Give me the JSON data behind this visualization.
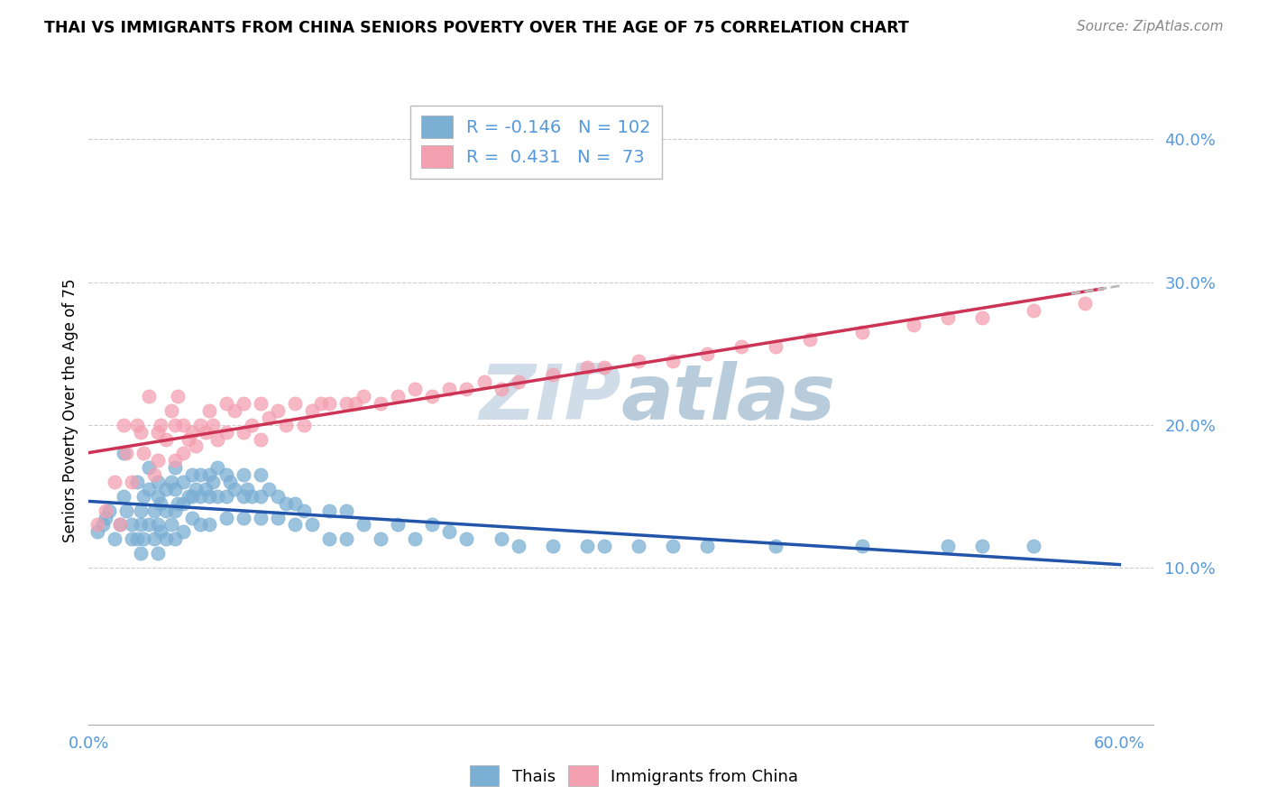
{
  "title": "THAI VS IMMIGRANTS FROM CHINA SENIORS POVERTY OVER THE AGE OF 75 CORRELATION CHART",
  "source": "Source: ZipAtlas.com",
  "ylabel": "Seniors Poverty Over the Age of 75",
  "legend_R_blue": "-0.146",
  "legend_N_blue": "102",
  "legend_R_pink": "0.431",
  "legend_N_pink": "73",
  "blue_color": "#7BAFD4",
  "pink_color": "#F4A0B0",
  "blue_line_color": "#2255AA",
  "pink_line_color": "#CC3355",
  "watermark_color": "#D0DDE8",
  "xlim": [
    0.0,
    0.62
  ],
  "ylim": [
    -0.01,
    0.43
  ],
  "ytick_vals": [
    0.1,
    0.2,
    0.3,
    0.4
  ],
  "ytick_labels": [
    "10.0%",
    "20.0%",
    "30.0%",
    "40.0%"
  ],
  "xtick_vals": [
    0.0,
    0.6
  ],
  "xtick_labels": [
    "0.0%",
    "60.0%"
  ],
  "blue_x": [
    0.005,
    0.008,
    0.01,
    0.012,
    0.015,
    0.018,
    0.02,
    0.02,
    0.022,
    0.025,
    0.025,
    0.028,
    0.028,
    0.03,
    0.03,
    0.03,
    0.032,
    0.032,
    0.035,
    0.035,
    0.035,
    0.038,
    0.038,
    0.04,
    0.04,
    0.04,
    0.04,
    0.042,
    0.042,
    0.045,
    0.045,
    0.045,
    0.048,
    0.048,
    0.05,
    0.05,
    0.05,
    0.05,
    0.052,
    0.055,
    0.055,
    0.055,
    0.058,
    0.06,
    0.06,
    0.06,
    0.062,
    0.065,
    0.065,
    0.065,
    0.068,
    0.07,
    0.07,
    0.07,
    0.072,
    0.075,
    0.075,
    0.08,
    0.08,
    0.08,
    0.082,
    0.085,
    0.09,
    0.09,
    0.09,
    0.092,
    0.095,
    0.1,
    0.1,
    0.1,
    0.105,
    0.11,
    0.11,
    0.115,
    0.12,
    0.12,
    0.125,
    0.13,
    0.14,
    0.14,
    0.15,
    0.15,
    0.16,
    0.17,
    0.18,
    0.19,
    0.2,
    0.21,
    0.22,
    0.24,
    0.25,
    0.27,
    0.29,
    0.3,
    0.32,
    0.34,
    0.36,
    0.4,
    0.45,
    0.5,
    0.52,
    0.55
  ],
  "blue_y": [
    0.125,
    0.13,
    0.135,
    0.14,
    0.12,
    0.13,
    0.15,
    0.18,
    0.14,
    0.13,
    0.12,
    0.16,
    0.12,
    0.14,
    0.13,
    0.11,
    0.15,
    0.12,
    0.17,
    0.155,
    0.13,
    0.14,
    0.12,
    0.16,
    0.15,
    0.13,
    0.11,
    0.145,
    0.125,
    0.155,
    0.14,
    0.12,
    0.16,
    0.13,
    0.17,
    0.155,
    0.14,
    0.12,
    0.145,
    0.16,
    0.145,
    0.125,
    0.15,
    0.165,
    0.15,
    0.135,
    0.155,
    0.165,
    0.15,
    0.13,
    0.155,
    0.165,
    0.15,
    0.13,
    0.16,
    0.17,
    0.15,
    0.165,
    0.15,
    0.135,
    0.16,
    0.155,
    0.165,
    0.15,
    0.135,
    0.155,
    0.15,
    0.165,
    0.15,
    0.135,
    0.155,
    0.15,
    0.135,
    0.145,
    0.145,
    0.13,
    0.14,
    0.13,
    0.14,
    0.12,
    0.14,
    0.12,
    0.13,
    0.12,
    0.13,
    0.12,
    0.13,
    0.125,
    0.12,
    0.12,
    0.115,
    0.115,
    0.115,
    0.115,
    0.115,
    0.115,
    0.115,
    0.115,
    0.115,
    0.115,
    0.115,
    0.115
  ],
  "pink_x": [
    0.005,
    0.01,
    0.015,
    0.018,
    0.02,
    0.022,
    0.025,
    0.028,
    0.03,
    0.032,
    0.035,
    0.038,
    0.04,
    0.04,
    0.042,
    0.045,
    0.048,
    0.05,
    0.05,
    0.052,
    0.055,
    0.055,
    0.058,
    0.06,
    0.062,
    0.065,
    0.068,
    0.07,
    0.072,
    0.075,
    0.08,
    0.08,
    0.085,
    0.09,
    0.09,
    0.095,
    0.1,
    0.1,
    0.105,
    0.11,
    0.115,
    0.12,
    0.125,
    0.13,
    0.135,
    0.14,
    0.15,
    0.155,
    0.16,
    0.17,
    0.18,
    0.19,
    0.2,
    0.21,
    0.22,
    0.23,
    0.24,
    0.25,
    0.27,
    0.29,
    0.3,
    0.32,
    0.34,
    0.36,
    0.38,
    0.4,
    0.42,
    0.45,
    0.48,
    0.5,
    0.52,
    0.55,
    0.58
  ],
  "pink_y": [
    0.13,
    0.14,
    0.16,
    0.13,
    0.2,
    0.18,
    0.16,
    0.2,
    0.195,
    0.18,
    0.22,
    0.165,
    0.195,
    0.175,
    0.2,
    0.19,
    0.21,
    0.2,
    0.175,
    0.22,
    0.2,
    0.18,
    0.19,
    0.195,
    0.185,
    0.2,
    0.195,
    0.21,
    0.2,
    0.19,
    0.215,
    0.195,
    0.21,
    0.215,
    0.195,
    0.2,
    0.215,
    0.19,
    0.205,
    0.21,
    0.2,
    0.215,
    0.2,
    0.21,
    0.215,
    0.215,
    0.215,
    0.215,
    0.22,
    0.215,
    0.22,
    0.225,
    0.22,
    0.225,
    0.225,
    0.23,
    0.225,
    0.23,
    0.235,
    0.24,
    0.24,
    0.245,
    0.245,
    0.25,
    0.255,
    0.255,
    0.26,
    0.265,
    0.27,
    0.275,
    0.275,
    0.28,
    0.285
  ]
}
